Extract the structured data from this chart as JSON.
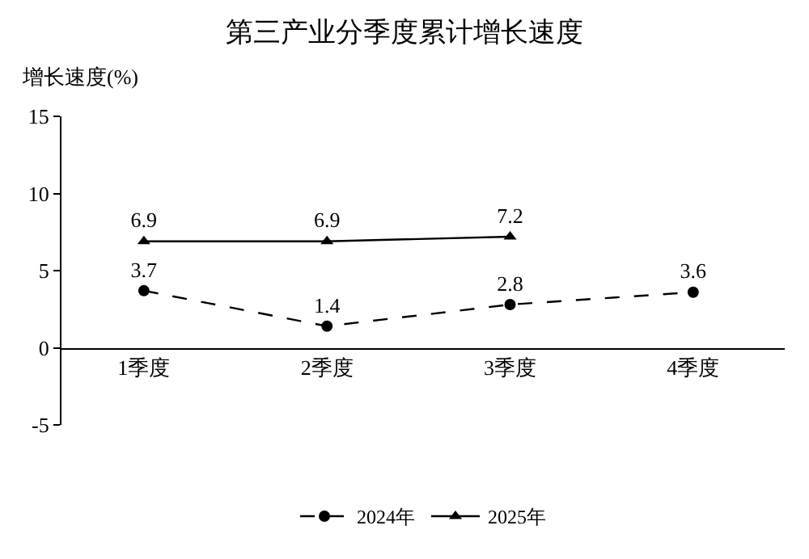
{
  "chart_data": {
    "type": "line",
    "title": "第三产业分季度累计增长速度",
    "ylabel": "增长速度(%)",
    "categories": [
      "1季度",
      "2季度",
      "3季度",
      "4季度"
    ],
    "series": [
      {
        "name": "2024年",
        "color": "#000000",
        "values": [
          3.7,
          1.4,
          2.8,
          3.6
        ],
        "marker": "circle",
        "line_style": "dashed"
      },
      {
        "name": "2025年",
        "color": "#000000",
        "values": [
          6.9,
          6.9,
          7.2,
          null
        ],
        "marker": "triangle",
        "line_style": "solid"
      }
    ],
    "ylim": [
      -5,
      15
    ],
    "yticks": [
      -5,
      0,
      5,
      10,
      15
    ],
    "data_labels": true,
    "legend": "bottom"
  }
}
